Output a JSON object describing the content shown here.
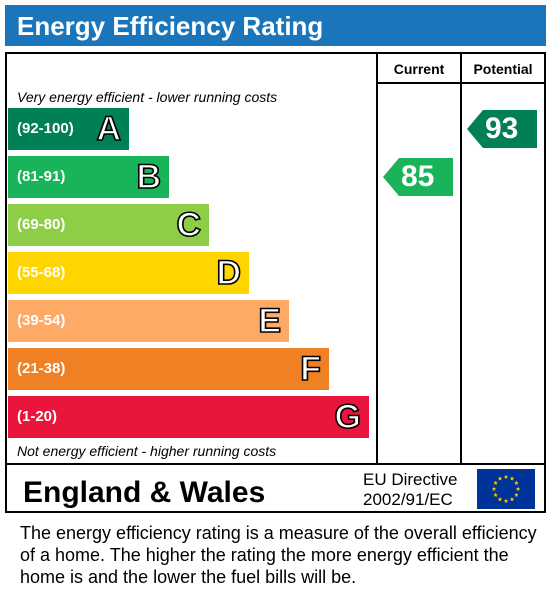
{
  "title": "Energy Efficiency Rating",
  "columns": {
    "current": "Current",
    "potential": "Potential"
  },
  "top_caption": "Very energy efficient - lower running costs",
  "bottom_caption": "Not energy efficient - higher running costs",
  "footer": {
    "country": "England & Wales",
    "directive_line1": "EU Directive",
    "directive_line2": "2002/91/EC",
    "flag_icon": "eu-flag-icon"
  },
  "description": "The energy efficiency rating is a measure of the overall efficiency of a home.  The higher the rating the more energy efficient the home is and the lower the fuel bills will be.",
  "chart_data": {
    "type": "bar",
    "title": "Energy Efficiency Rating",
    "bands": [
      {
        "letter": "A",
        "range": "(92-100)",
        "min": 92,
        "max": 100,
        "color": "#008054"
      },
      {
        "letter": "B",
        "range": "(81-91)",
        "min": 81,
        "max": 91,
        "color": "#19b459"
      },
      {
        "letter": "C",
        "range": "(69-80)",
        "min": 69,
        "max": 80,
        "color": "#8dce46"
      },
      {
        "letter": "D",
        "range": "(55-68)",
        "min": 55,
        "max": 68,
        "color": "#ffd500"
      },
      {
        "letter": "E",
        "range": "(39-54)",
        "min": 39,
        "max": 54,
        "color": "#fcaa65"
      },
      {
        "letter": "F",
        "range": "(21-38)",
        "min": 21,
        "max": 38,
        "color": "#ef8023"
      },
      {
        "letter": "G",
        "range": "(1-20)",
        "min": 1,
        "max": 20,
        "color": "#e9153b"
      }
    ],
    "current": {
      "label": "Current",
      "value": 85,
      "band": "B",
      "color": "#19b459"
    },
    "potential": {
      "label": "Potential",
      "value": 93,
      "band": "A",
      "color": "#008054"
    }
  }
}
